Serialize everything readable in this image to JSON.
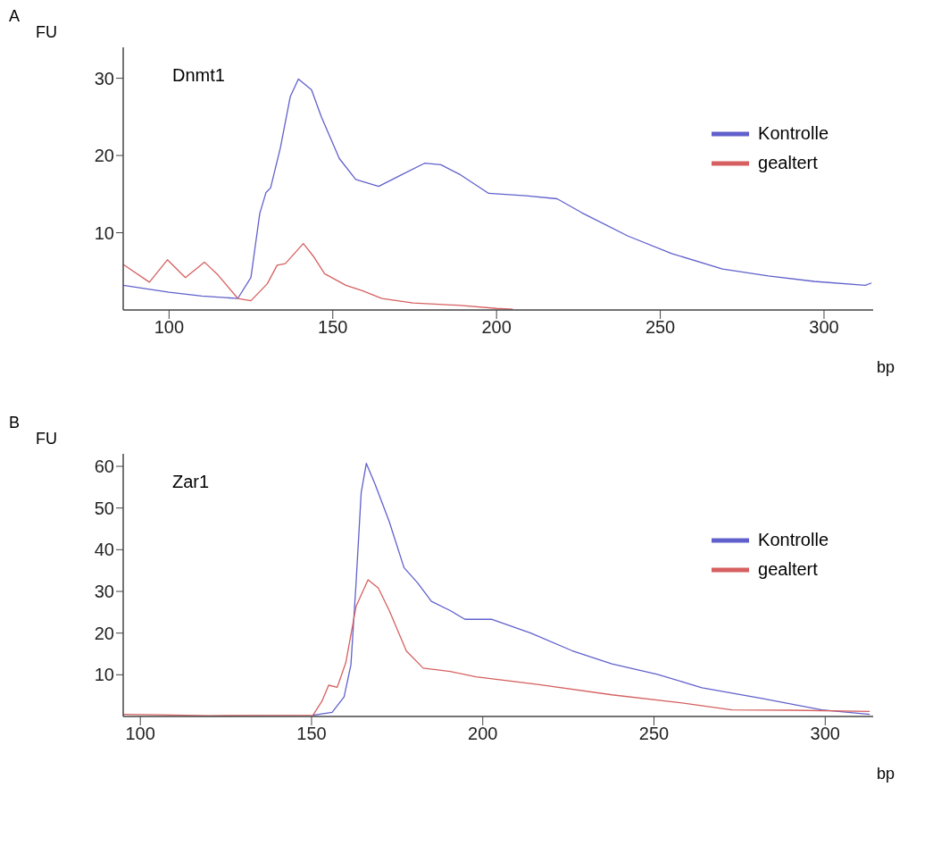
{
  "chart_data": [
    {
      "type": "line",
      "title": "A",
      "xlabel": "bp",
      "ylabel": "FU",
      "annotations": [
        "Dnmt1"
      ],
      "xlim": [
        86,
        315
      ],
      "xticks": [
        100,
        150,
        200,
        250,
        300
      ],
      "ylim": [
        0,
        34
      ],
      "yticks": [
        10,
        20,
        30
      ],
      "legend": "right",
      "marker": "none",
      "line_style": "solid",
      "series": [
        {
          "name": "Kontrolle",
          "color": "#6060cc",
          "x": [
            86,
            100,
            110,
            121,
            125,
            127.7,
            129.6,
            131,
            134,
            137,
            139.5,
            143.5,
            146.5,
            152,
            157,
            164,
            171,
            178,
            183,
            189,
            197.6,
            209,
            218.5,
            226,
            240,
            253.5,
            269,
            283,
            297,
            312.6,
            314.5
          ],
          "values": [
            3.2,
            2.3,
            1.8,
            1.5,
            4.2,
            12.5,
            15.2,
            15.8,
            21,
            27.6,
            29.9,
            28.5,
            25,
            19.6,
            16.9,
            16,
            17.5,
            19,
            18.8,
            17.5,
            15.1,
            14.8,
            14.4,
            12.6,
            9.6,
            7.3,
            5.3,
            4.4,
            3.7,
            3.2,
            3.5
          ]
        },
        {
          "name": "gealtert",
          "color": "#d66060",
          "x": [
            86,
            94,
            99.5,
            105,
            110.8,
            115,
            121,
            125,
            130,
            133,
            135.5,
            141,
            144,
            147.5,
            154,
            159,
            165,
            174.5,
            189,
            200,
            205
          ],
          "values": [
            5.9,
            3.6,
            6.5,
            4.2,
            6.2,
            4.5,
            1.5,
            1.2,
            3.4,
            5.8,
            6,
            8.6,
            7,
            4.7,
            3.2,
            2.5,
            1.5,
            0.9,
            0.6,
            0.2,
            0.1
          ]
        }
      ]
    },
    {
      "type": "line",
      "title": "B",
      "xlabel": "bp",
      "ylabel": "FU",
      "annotations": [
        "Zar1"
      ],
      "xlim": [
        95,
        314
      ],
      "xticks": [
        100,
        150,
        200,
        250,
        300
      ],
      "ylim": [
        0,
        63
      ],
      "yticks": [
        10,
        20,
        30,
        40,
        50,
        60
      ],
      "legend": "right",
      "marker": "none",
      "line_style": "solid",
      "series": [
        {
          "name": "Kontrolle",
          "color": "#6060cc",
          "x": [
            150.4,
            156,
            159.5,
            161.5,
            163,
            164.5,
            166,
            168.5,
            172.7,
            177,
            181,
            185,
            190.5,
            194.8,
            202.7,
            214,
            226,
            237.7,
            251,
            264,
            281.6,
            299,
            313
          ],
          "values": [
            0.3,
            1,
            4.7,
            12.4,
            32,
            53.7,
            60.7,
            55.8,
            46.7,
            35.7,
            32,
            27.6,
            25.4,
            23.3,
            23.3,
            20,
            15.8,
            12.6,
            10.1,
            6.9,
            4.3,
            1.6,
            0.5
          ]
        },
        {
          "name": "gealtert",
          "color": "#d66060",
          "x": [
            95,
            105,
            120,
            150.4,
            153,
            155,
            157.5,
            160,
            163,
            166.5,
            169.5,
            172.7,
            177.7,
            182.6,
            190.5,
            198,
            216,
            237.7,
            259.6,
            272.7,
            290,
            313
          ],
          "values": [
            0.5,
            0.4,
            0.2,
            0.3,
            3.6,
            7.5,
            7,
            12.9,
            26.4,
            32.8,
            30.8,
            25.4,
            15.7,
            11.6,
            10.8,
            9.5,
            7.7,
            5.2,
            3.1,
            1.6,
            1.5,
            1.2
          ]
        }
      ]
    }
  ]
}
